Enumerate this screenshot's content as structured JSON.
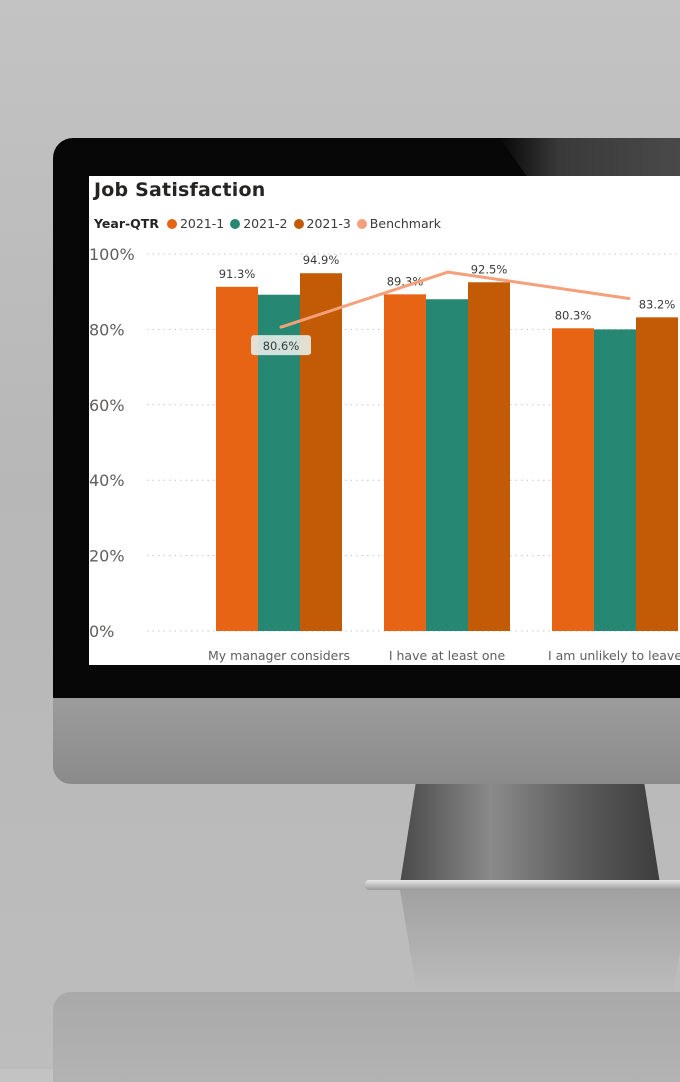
{
  "colors": {
    "s2021_1": "#E66413",
    "s2021_2": "#268873",
    "s2021_3": "#C25A06",
    "benchmark": "#F5A07A",
    "axis_text": "#605e5c",
    "grid": "#c8c6c4"
  },
  "chart_data": {
    "type": "bar",
    "title": "Job Satisfaction",
    "legend_title": "Year-QTR",
    "legend_position": "top-left",
    "xlabel": "",
    "ylabel": "",
    "ylim": [
      0,
      100
    ],
    "y_ticks": [
      "0%",
      "20%",
      "40%",
      "60%",
      "80%",
      "100%"
    ],
    "grid": true,
    "categories": [
      "My manager considers",
      "I have at least one",
      "I am unlikely to leave"
    ],
    "series": [
      {
        "name": "2021-1",
        "color": "#E66413",
        "values": [
          91.3,
          89.3,
          80.3
        ],
        "labels": [
          "91.3%",
          "89.3%",
          "80.3%"
        ]
      },
      {
        "name": "2021-2",
        "color": "#268873",
        "values": [
          89.2,
          88.0,
          80.0
        ],
        "labels": [
          "",
          "",
          ""
        ]
      },
      {
        "name": "2021-3",
        "color": "#C25A06",
        "values": [
          94.9,
          92.5,
          83.2
        ],
        "labels": [
          "94.9%",
          "92.5%",
          "83.2%"
        ]
      }
    ],
    "benchmark": {
      "name": "Benchmark",
      "type": "line",
      "color": "#F5A07A",
      "values": [
        80.6,
        95.2,
        88.2
      ],
      "labels": [
        "80.6%",
        "",
        ""
      ]
    }
  }
}
